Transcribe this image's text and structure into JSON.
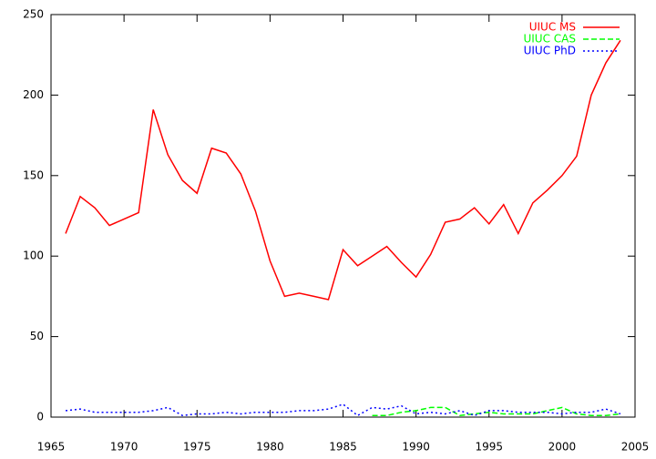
{
  "chart_data": {
    "type": "line",
    "x": [
      1966,
      1967,
      1968,
      1969,
      1970,
      1971,
      1972,
      1973,
      1974,
      1975,
      1976,
      1977,
      1978,
      1979,
      1980,
      1981,
      1982,
      1983,
      1984,
      1985,
      1986,
      1987,
      1988,
      1989,
      1990,
      1991,
      1992,
      1993,
      1994,
      1995,
      1996,
      1997,
      1998,
      1999,
      2000,
      2001,
      2002,
      2003,
      2004
    ],
    "series": [
      {
        "name": "UIUC MS",
        "color": "#ff0000",
        "dash": "solid",
        "values": [
          114,
          137,
          130,
          119,
          123,
          127,
          191,
          163,
          147,
          139,
          167,
          164,
          151,
          128,
          97,
          75,
          77,
          75,
          73,
          104,
          94,
          100,
          106,
          96,
          87,
          101,
          121,
          123,
          130,
          120,
          132,
          114,
          133,
          141,
          150,
          162,
          200,
          220,
          234
        ]
      },
      {
        "name": "UIUC CAS",
        "color": "#00ff00",
        "dash": "dashed",
        "values": [
          null,
          null,
          null,
          null,
          null,
          null,
          null,
          null,
          null,
          null,
          null,
          null,
          null,
          null,
          null,
          null,
          null,
          null,
          null,
          null,
          null,
          1,
          1,
          3,
          4,
          6,
          6,
          1,
          2,
          3,
          2,
          2,
          2,
          4,
          6,
          2,
          1,
          1,
          2
        ]
      },
      {
        "name": "UIUC PhD",
        "color": "#0000ff",
        "dash": "dotted",
        "values": [
          4,
          5,
          3,
          3,
          3,
          3,
          4,
          6,
          1,
          2,
          2,
          3,
          2,
          3,
          3,
          3,
          4,
          4,
          5,
          8,
          1,
          6,
          5,
          7,
          2,
          3,
          2,
          4,
          1,
          4,
          4,
          3,
          3,
          3,
          2,
          3,
          3,
          5,
          2
        ]
      }
    ],
    "xlim": [
      1965,
      2005
    ],
    "xticks": [
      1965,
      1970,
      1975,
      1980,
      1985,
      1990,
      1995,
      2000,
      2005
    ],
    "ylim": [
      0,
      250
    ],
    "yticks": [
      0,
      50,
      100,
      150,
      200,
      250
    ],
    "grid": false,
    "legend": "top-right"
  }
}
